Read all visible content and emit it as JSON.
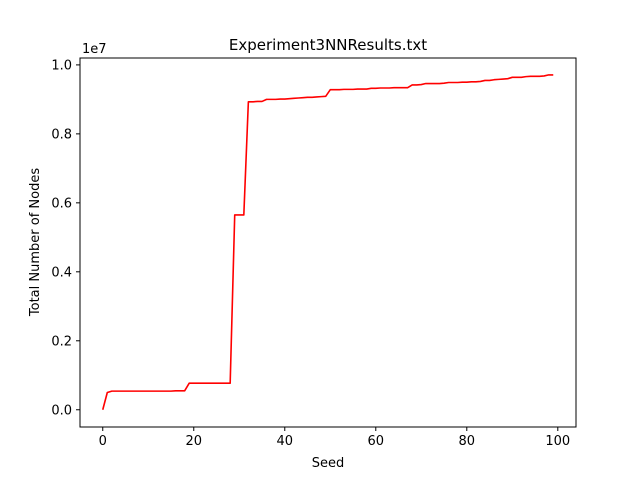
{
  "chart_data": {
    "type": "line",
    "title": "Experiment3NNResults.txt",
    "xlabel": "Seed",
    "ylabel": "Total Number of Nodes",
    "y_offset_label": "1e7",
    "xlim": [
      -5,
      104
    ],
    "ylim": [
      -0.05,
      1.02
    ],
    "xticks": [
      0,
      20,
      40,
      60,
      80,
      100
    ],
    "xtick_labels": [
      "0",
      "20",
      "40",
      "60",
      "80",
      "100"
    ],
    "yticks": [
      0.0,
      0.2,
      0.4,
      0.6,
      0.8,
      1.0
    ],
    "ytick_labels": [
      "0.0",
      "0.2",
      "0.4",
      "0.6",
      "0.8",
      "1.0"
    ],
    "grid": false,
    "series": [
      {
        "name": "Experiment3NNResults",
        "color": "#ff0000",
        "x": [
          0,
          1,
          2,
          3,
          4,
          5,
          6,
          7,
          8,
          9,
          10,
          11,
          12,
          13,
          14,
          15,
          16,
          17,
          18,
          19,
          20,
          21,
          22,
          23,
          24,
          25,
          26,
          27,
          28,
          29,
          30,
          31,
          32,
          33,
          34,
          35,
          36,
          37,
          38,
          39,
          40,
          41,
          42,
          43,
          44,
          45,
          46,
          47,
          48,
          49,
          50,
          51,
          52,
          53,
          54,
          55,
          56,
          57,
          58,
          59,
          60,
          61,
          62,
          63,
          64,
          65,
          66,
          67,
          68,
          69,
          70,
          71,
          72,
          73,
          74,
          75,
          76,
          77,
          78,
          79,
          80,
          81,
          82,
          83,
          84,
          85,
          86,
          87,
          88,
          89,
          90,
          91,
          92,
          93,
          94,
          95,
          96,
          97,
          98,
          99
        ],
        "values": [
          0.0,
          0.05,
          0.054,
          0.054,
          0.054,
          0.054,
          0.054,
          0.054,
          0.054,
          0.054,
          0.054,
          0.054,
          0.054,
          0.054,
          0.054,
          0.054,
          0.055,
          0.055,
          0.055,
          0.077,
          0.077,
          0.077,
          0.077,
          0.077,
          0.077,
          0.077,
          0.077,
          0.077,
          0.077,
          0.565,
          0.565,
          0.565,
          0.893,
          0.893,
          0.894,
          0.894,
          0.9,
          0.9,
          0.9,
          0.901,
          0.901,
          0.902,
          0.903,
          0.904,
          0.905,
          0.906,
          0.906,
          0.907,
          0.908,
          0.909,
          0.928,
          0.928,
          0.928,
          0.929,
          0.929,
          0.929,
          0.93,
          0.93,
          0.93,
          0.932,
          0.932,
          0.933,
          0.933,
          0.933,
          0.934,
          0.934,
          0.934,
          0.934,
          0.942,
          0.942,
          0.943,
          0.946,
          0.946,
          0.946,
          0.946,
          0.947,
          0.949,
          0.949,
          0.949,
          0.95,
          0.95,
          0.951,
          0.951,
          0.952,
          0.955,
          0.955,
          0.957,
          0.958,
          0.959,
          0.96,
          0.964,
          0.964,
          0.964,
          0.966,
          0.967,
          0.967,
          0.967,
          0.968,
          0.971,
          0.971
        ]
      }
    ]
  }
}
